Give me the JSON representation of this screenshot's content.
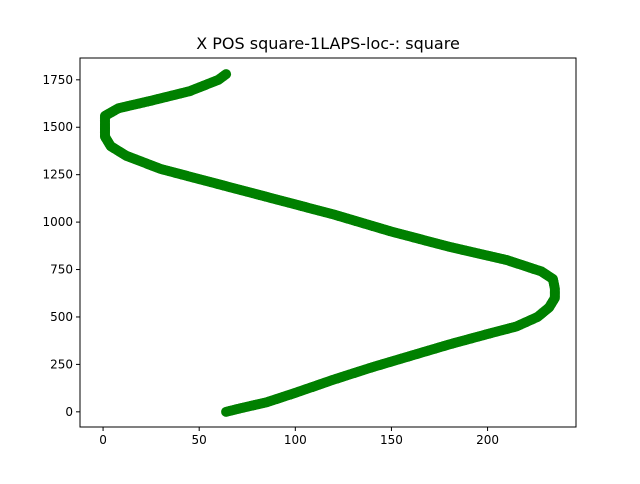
{
  "chart_data": {
    "type": "scatter",
    "title": "X POS square-1LAPS-loc-: square",
    "xlabel": "",
    "ylabel": "",
    "xlim": [
      -12,
      246
    ],
    "ylim": [
      -80,
      1865
    ],
    "xticks": [
      0,
      50,
      100,
      150,
      200
    ],
    "yticks": [
      0,
      250,
      500,
      750,
      1000,
      1250,
      1500,
      1750
    ],
    "xtick_labels": [
      "0",
      "50",
      "100",
      "150",
      "200"
    ],
    "ytick_labels": [
      "0",
      "250",
      "500",
      "750",
      "1000",
      "1250",
      "1500",
      "1750"
    ],
    "grid": false,
    "color": "#008000",
    "series": [
      {
        "points": [
          [
            64,
            0
          ],
          [
            72,
            20
          ],
          [
            85,
            50
          ],
          [
            100,
            100
          ],
          [
            120,
            170
          ],
          [
            140,
            235
          ],
          [
            160,
            295
          ],
          [
            180,
            355
          ],
          [
            200,
            410
          ],
          [
            215,
            450
          ],
          [
            226,
            500
          ],
          [
            232,
            550
          ],
          [
            235,
            600
          ],
          [
            235,
            650
          ],
          [
            234,
            700
          ],
          [
            228,
            740
          ],
          [
            210,
            800
          ],
          [
            180,
            870
          ],
          [
            150,
            950
          ],
          [
            120,
            1040
          ],
          [
            90,
            1120
          ],
          [
            60,
            1200
          ],
          [
            30,
            1280
          ],
          [
            12,
            1350
          ],
          [
            4,
            1400
          ],
          [
            1,
            1450
          ],
          [
            1,
            1500
          ],
          [
            1,
            1560
          ],
          [
            8,
            1600
          ],
          [
            25,
            1640
          ],
          [
            45,
            1690
          ],
          [
            60,
            1750
          ],
          [
            64,
            1780
          ]
        ]
      }
    ]
  }
}
